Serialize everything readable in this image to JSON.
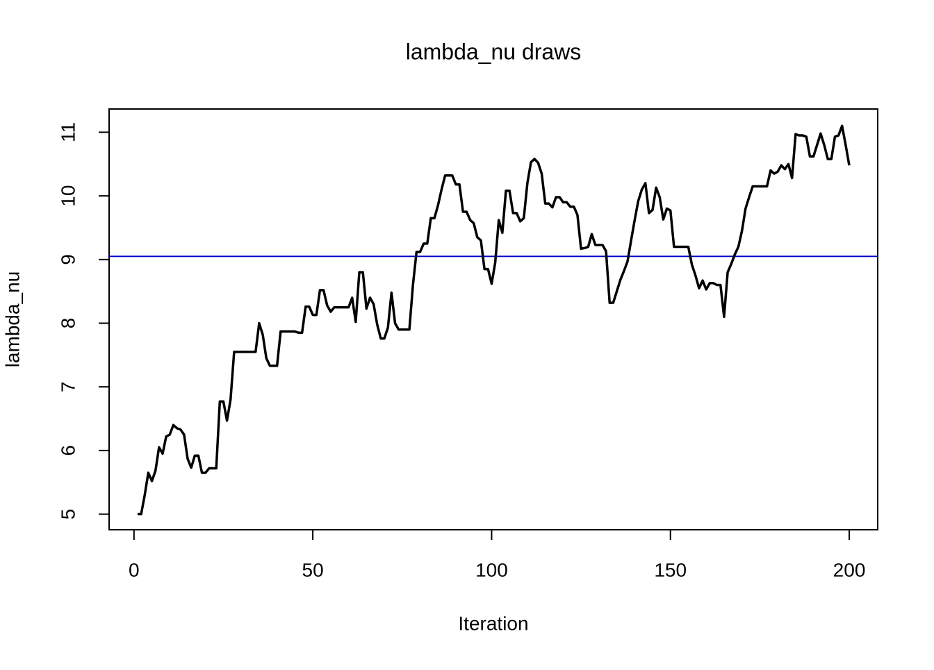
{
  "chart_data": {
    "type": "line",
    "title": "lambda_nu draws",
    "x_label": "Iteration",
    "y_label": "lambda_nu",
    "x": [
      1,
      2,
      3,
      4,
      5,
      6,
      7,
      8,
      9,
      10,
      11,
      12,
      13,
      14,
      15,
      16,
      17,
      18,
      19,
      20,
      21,
      22,
      23,
      24,
      25,
      26,
      27,
      28,
      29,
      30,
      31,
      32,
      33,
      34,
      35,
      36,
      37,
      38,
      39,
      40,
      41,
      42,
      43,
      44,
      45,
      46,
      47,
      48,
      49,
      50,
      51,
      52,
      53,
      54,
      55,
      56,
      57,
      58,
      59,
      60,
      61,
      62,
      63,
      64,
      65,
      66,
      67,
      68,
      69,
      70,
      71,
      72,
      73,
      74,
      75,
      76,
      77,
      78,
      79,
      80,
      81,
      82,
      83,
      84,
      85,
      86,
      87,
      88,
      89,
      90,
      91,
      92,
      93,
      94,
      95,
      96,
      97,
      98,
      99,
      100,
      101,
      102,
      103,
      104,
      105,
      106,
      107,
      108,
      109,
      110,
      111,
      112,
      113,
      114,
      115,
      116,
      117,
      118,
      119,
      120,
      121,
      122,
      123,
      124,
      125,
      126,
      127,
      128,
      129,
      130,
      131,
      132,
      133,
      134,
      135,
      136,
      137,
      138,
      139,
      140,
      141,
      142,
      143,
      144,
      145,
      146,
      147,
      148,
      149,
      150,
      151,
      152,
      153,
      154,
      155,
      156,
      157,
      158,
      159,
      160,
      161,
      162,
      163,
      164,
      165,
      166,
      167,
      168,
      169,
      170,
      171,
      172,
      173,
      174,
      175,
      176,
      177,
      178,
      179,
      180,
      181,
      182,
      183,
      184,
      185,
      186,
      187,
      188,
      189,
      190,
      191,
      192,
      193,
      194,
      195,
      196,
      197,
      198,
      199,
      200
    ],
    "series": [
      {
        "name": "lambda_nu",
        "color": "#000000",
        "values": [
          5.0,
          5.0,
          5.3,
          5.65,
          5.52,
          5.68,
          6.05,
          5.95,
          6.22,
          6.25,
          6.4,
          6.35,
          6.33,
          6.25,
          5.87,
          5.73,
          5.92,
          5.92,
          5.65,
          5.65,
          5.72,
          5.72,
          5.72,
          6.77,
          6.77,
          6.47,
          6.8,
          7.55,
          7.55,
          7.55,
          7.55,
          7.55,
          7.55,
          7.55,
          8.0,
          7.82,
          7.45,
          7.33,
          7.33,
          7.33,
          7.87,
          7.87,
          7.87,
          7.87,
          7.87,
          7.85,
          7.85,
          8.26,
          8.26,
          8.13,
          8.13,
          8.52,
          8.52,
          8.28,
          8.18,
          8.25,
          8.25,
          8.25,
          8.25,
          8.25,
          8.4,
          8.02,
          8.8,
          8.8,
          8.23,
          8.4,
          8.3,
          7.98,
          7.76,
          7.76,
          7.93,
          8.48,
          8.0,
          7.9,
          7.9,
          7.9,
          7.9,
          8.6,
          9.12,
          9.12,
          9.25,
          9.25,
          9.65,
          9.65,
          9.85,
          10.1,
          10.32,
          10.32,
          10.32,
          10.18,
          10.18,
          9.75,
          9.75,
          9.62,
          9.57,
          9.35,
          9.3,
          8.85,
          8.85,
          8.62,
          8.95,
          9.62,
          9.42,
          10.08,
          10.08,
          9.73,
          9.73,
          9.6,
          9.65,
          10.2,
          10.53,
          10.58,
          10.52,
          10.35,
          9.88,
          9.88,
          9.82,
          9.98,
          9.98,
          9.9,
          9.9,
          9.83,
          9.83,
          9.7,
          9.17,
          9.18,
          9.2,
          9.4,
          9.23,
          9.23,
          9.23,
          9.13,
          8.32,
          8.32,
          8.5,
          8.68,
          8.82,
          8.97,
          9.3,
          9.62,
          9.92,
          10.1,
          10.2,
          9.73,
          9.78,
          10.13,
          9.98,
          9.63,
          9.8,
          9.77,
          9.2,
          9.2,
          9.2,
          9.2,
          9.2,
          8.92,
          8.75,
          8.55,
          8.67,
          8.53,
          8.63,
          8.63,
          8.6,
          8.6,
          8.1,
          8.8,
          8.93,
          9.08,
          9.2,
          9.45,
          9.8,
          9.98,
          10.15,
          10.15,
          10.15,
          10.15,
          10.15,
          10.4,
          10.35,
          10.38,
          10.48,
          10.42,
          10.5,
          10.28,
          10.97,
          10.95,
          10.95,
          10.93,
          10.62,
          10.62,
          10.8,
          10.98,
          10.8,
          10.58,
          10.58,
          10.93,
          10.95,
          11.1,
          10.8,
          10.48
        ]
      }
    ],
    "hline": {
      "value": 9.05,
      "color": "#0000cd"
    },
    "xlim": [
      -6.96,
      207.96
    ],
    "ylim": [
      4.755,
      11.365
    ],
    "xticks": [
      0,
      50,
      100,
      150,
      200
    ],
    "yticks": [
      5,
      6,
      7,
      8,
      9,
      10,
      11
    ]
  }
}
